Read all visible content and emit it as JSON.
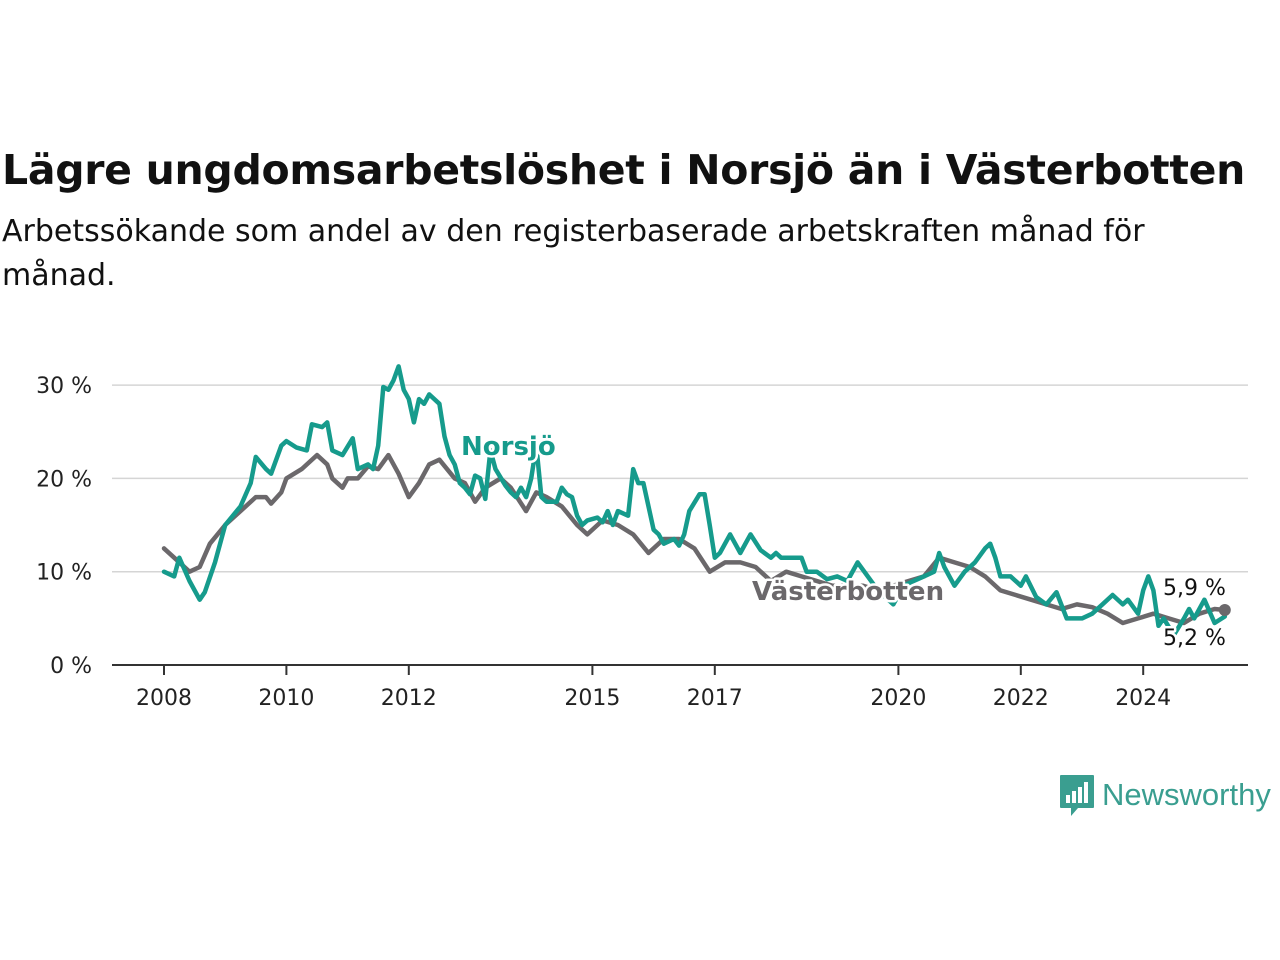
{
  "header": {
    "title": "Lägre ungdomsarbetslöshet i Norsjö än i Västerbotten",
    "subtitle": "Arbetssökande som andel av den registerbaserade arbetskraften månad för månad."
  },
  "branding": {
    "logo_text": "Newsworthy",
    "logo_icon": "bar-chart-speech-bubble-icon"
  },
  "colors": {
    "norsjo": "#169b8c",
    "vasterbotten": "#6b686b",
    "grid": "#d5d5d5",
    "axis": "#333333"
  },
  "chart_data": {
    "type": "line",
    "title": "Lägre ungdomsarbetslöshet i Norsjö än i Västerbotten",
    "subtitle": "Arbetssökande som andel av den registerbaserade arbetskraften månad för månad.",
    "x_axis": {
      "type": "time",
      "min": "2008-01",
      "max": "2025-12",
      "ticks": [
        "2008",
        "2010",
        "2012",
        "2015",
        "2017",
        "2020",
        "2022",
        "2024"
      ]
    },
    "y_axis": {
      "min": 0,
      "max": 30,
      "ticks": [
        0,
        10,
        20,
        30
      ],
      "tick_labels": [
        "0 %",
        "10 %",
        "20 %",
        "30 %"
      ]
    },
    "grid": "horizontal",
    "series": [
      {
        "name": "Norsjö",
        "end_label": "5,2 %",
        "points": [
          [
            "2008-01",
            10.0
          ],
          [
            "2008-03",
            9.5
          ],
          [
            "2008-04",
            11.5
          ],
          [
            "2008-06",
            9.0
          ],
          [
            "2008-08",
            7.0
          ],
          [
            "2008-09",
            7.8
          ],
          [
            "2008-11",
            11.0
          ],
          [
            "2009-01",
            15.0
          ],
          [
            "2009-04",
            17.0
          ],
          [
            "2009-06",
            19.5
          ],
          [
            "2009-07",
            22.3
          ],
          [
            "2009-09",
            21.0
          ],
          [
            "2009-10",
            20.5
          ],
          [
            "2009-12",
            23.5
          ],
          [
            "2010-01",
            24.0
          ],
          [
            "2010-03",
            23.3
          ],
          [
            "2010-05",
            23.0
          ],
          [
            "2010-06",
            25.8
          ],
          [
            "2010-08",
            25.5
          ],
          [
            "2010-09",
            26.0
          ],
          [
            "2010-10",
            23.0
          ],
          [
            "2010-12",
            22.5
          ],
          [
            "2011-02",
            24.3
          ],
          [
            "2011-03",
            21.0
          ],
          [
            "2011-05",
            21.5
          ],
          [
            "2011-06",
            21.0
          ],
          [
            "2011-07",
            23.5
          ],
          [
            "2011-08",
            29.8
          ],
          [
            "2011-09",
            29.5
          ],
          [
            "2011-10",
            30.5
          ],
          [
            "2011-11",
            32.0
          ],
          [
            "2011-12",
            29.5
          ],
          [
            "2012-01",
            28.5
          ],
          [
            "2012-02",
            26.0
          ],
          [
            "2012-03",
            28.5
          ],
          [
            "2012-04",
            28.0
          ],
          [
            "2012-05",
            29.0
          ],
          [
            "2012-07",
            28.0
          ],
          [
            "2012-08",
            24.5
          ],
          [
            "2012-09",
            22.5
          ],
          [
            "2012-10",
            21.5
          ],
          [
            "2012-11",
            19.5
          ],
          [
            "2012-12",
            19.0
          ],
          [
            "2013-01",
            18.3
          ],
          [
            "2013-02",
            20.3
          ],
          [
            "2013-03",
            20.0
          ],
          [
            "2013-04",
            17.8
          ],
          [
            "2013-05",
            23.0
          ],
          [
            "2013-06",
            21.0
          ],
          [
            "2013-08",
            19.2
          ],
          [
            "2013-09",
            18.5
          ],
          [
            "2013-10",
            18.0
          ],
          [
            "2013-11",
            19.0
          ],
          [
            "2013-12",
            18.0
          ],
          [
            "2014-01",
            20.0
          ],
          [
            "2014-02",
            23.5
          ],
          [
            "2014-03",
            18.0
          ],
          [
            "2014-04",
            17.5
          ],
          [
            "2014-06",
            17.5
          ],
          [
            "2014-07",
            19.0
          ],
          [
            "2014-08",
            18.3
          ],
          [
            "2014-09",
            18.0
          ],
          [
            "2014-10",
            16.0
          ],
          [
            "2014-11",
            15.0
          ],
          [
            "2014-12",
            15.5
          ],
          [
            "2015-02",
            15.8
          ],
          [
            "2015-03",
            15.3
          ],
          [
            "2015-04",
            16.5
          ],
          [
            "2015-05",
            15.0
          ],
          [
            "2015-06",
            16.5
          ],
          [
            "2015-08",
            16.0
          ],
          [
            "2015-09",
            21.0
          ],
          [
            "2015-10",
            19.5
          ],
          [
            "2015-11",
            19.5
          ],
          [
            "2015-12",
            17.0
          ],
          [
            "2016-01",
            14.5
          ],
          [
            "2016-02",
            14.0
          ],
          [
            "2016-03",
            13.0
          ],
          [
            "2016-05",
            13.5
          ],
          [
            "2016-06",
            12.8
          ],
          [
            "2016-07",
            14.0
          ],
          [
            "2016-08",
            16.5
          ],
          [
            "2016-10",
            18.3
          ],
          [
            "2016-11",
            18.3
          ],
          [
            "2016-12",
            15.0
          ],
          [
            "2017-01",
            11.5
          ],
          [
            "2017-02",
            12.0
          ],
          [
            "2017-04",
            14.0
          ],
          [
            "2017-05",
            13.0
          ],
          [
            "2017-06",
            12.0
          ],
          [
            "2017-08",
            14.0
          ],
          [
            "2017-10",
            12.3
          ],
          [
            "2017-12",
            11.5
          ],
          [
            "2018-01",
            12.0
          ],
          [
            "2018-02",
            11.5
          ],
          [
            "2018-04",
            11.5
          ],
          [
            "2018-06",
            11.5
          ],
          [
            "2018-07",
            10.0
          ],
          [
            "2018-09",
            10.0
          ],
          [
            "2018-11",
            9.2
          ],
          [
            "2019-01",
            9.5
          ],
          [
            "2019-03",
            9.0
          ],
          [
            "2019-05",
            11.0
          ],
          [
            "2019-07",
            9.5
          ],
          [
            "2019-09",
            8.0
          ],
          [
            "2019-12",
            6.5
          ],
          [
            "2020-02",
            8.5
          ],
          [
            "2020-04",
            9.0
          ],
          [
            "2020-06",
            9.5
          ],
          [
            "2020-08",
            10.0
          ],
          [
            "2020-09",
            12.0
          ],
          [
            "2020-10",
            10.5
          ],
          [
            "2020-11",
            9.5
          ],
          [
            "2020-12",
            8.5
          ],
          [
            "2021-02",
            10.0
          ],
          [
            "2021-04",
            11.0
          ],
          [
            "2021-06",
            12.5
          ],
          [
            "2021-07",
            13.0
          ],
          [
            "2021-08",
            11.5
          ],
          [
            "2021-09",
            9.5
          ],
          [
            "2021-11",
            9.5
          ],
          [
            "2022-01",
            8.5
          ],
          [
            "2022-02",
            9.5
          ],
          [
            "2022-04",
            7.3
          ],
          [
            "2022-06",
            6.5
          ],
          [
            "2022-08",
            7.8
          ],
          [
            "2022-10",
            5.0
          ],
          [
            "2023-01",
            5.0
          ],
          [
            "2023-03",
            5.5
          ],
          [
            "2023-05",
            6.5
          ],
          [
            "2023-07",
            7.5
          ],
          [
            "2023-09",
            6.5
          ],
          [
            "2023-10",
            7.0
          ],
          [
            "2023-12",
            5.5
          ],
          [
            "2024-01",
            8.0
          ],
          [
            "2024-02",
            9.5
          ],
          [
            "2024-03",
            8.0
          ],
          [
            "2024-04",
            4.2
          ],
          [
            "2024-05",
            5.0
          ],
          [
            "2024-07",
            3.2
          ],
          [
            "2024-09",
            5.0
          ],
          [
            "2024-10",
            6.0
          ],
          [
            "2024-11",
            5.0
          ],
          [
            "2025-01",
            7.0
          ],
          [
            "2025-03",
            4.5
          ],
          [
            "2025-05",
            5.2
          ]
        ]
      },
      {
        "name": "Västerbotten",
        "end_label": "5,9 %",
        "points": [
          [
            "2008-01",
            12.5
          ],
          [
            "2008-03",
            11.5
          ],
          [
            "2008-06",
            10.0
          ],
          [
            "2008-08",
            10.5
          ],
          [
            "2008-10",
            13.0
          ],
          [
            "2009-01",
            15.0
          ],
          [
            "2009-04",
            16.5
          ],
          [
            "2009-07",
            18.0
          ],
          [
            "2009-09",
            18.0
          ],
          [
            "2009-10",
            17.3
          ],
          [
            "2009-12",
            18.5
          ],
          [
            "2010-01",
            20.0
          ],
          [
            "2010-04",
            21.0
          ],
          [
            "2010-07",
            22.5
          ],
          [
            "2010-09",
            21.5
          ],
          [
            "2010-10",
            20.0
          ],
          [
            "2010-12",
            19.0
          ],
          [
            "2011-01",
            20.0
          ],
          [
            "2011-03",
            20.0
          ],
          [
            "2011-05",
            21.3
          ],
          [
            "2011-07",
            21.0
          ],
          [
            "2011-09",
            22.5
          ],
          [
            "2011-11",
            20.5
          ],
          [
            "2012-01",
            18.0
          ],
          [
            "2012-03",
            19.5
          ],
          [
            "2012-05",
            21.5
          ],
          [
            "2012-07",
            22.0
          ],
          [
            "2012-10",
            20.0
          ],
          [
            "2012-12",
            19.5
          ],
          [
            "2013-02",
            17.5
          ],
          [
            "2013-04",
            19.0
          ],
          [
            "2013-07",
            20.0
          ],
          [
            "2013-09",
            19.0
          ],
          [
            "2013-12",
            16.5
          ],
          [
            "2014-02",
            18.5
          ],
          [
            "2014-04",
            18.0
          ],
          [
            "2014-07",
            17.0
          ],
          [
            "2014-10",
            15.0
          ],
          [
            "2014-12",
            14.0
          ],
          [
            "2015-03",
            15.5
          ],
          [
            "2015-06",
            15.0
          ],
          [
            "2015-09",
            14.0
          ],
          [
            "2015-12",
            12.0
          ],
          [
            "2016-03",
            13.5
          ],
          [
            "2016-06",
            13.5
          ],
          [
            "2016-09",
            12.5
          ],
          [
            "2016-12",
            10.0
          ],
          [
            "2017-03",
            11.0
          ],
          [
            "2017-06",
            11.0
          ],
          [
            "2017-09",
            10.5
          ],
          [
            "2017-12",
            9.0
          ],
          [
            "2018-03",
            10.0
          ],
          [
            "2018-06",
            9.5
          ],
          [
            "2018-09",
            9.0
          ],
          [
            "2018-12",
            8.5
          ],
          [
            "2019-03",
            8.5
          ],
          [
            "2019-06",
            8.5
          ],
          [
            "2019-09",
            8.0
          ],
          [
            "2019-12",
            8.5
          ],
          [
            "2020-03",
            9.0
          ],
          [
            "2020-06",
            9.5
          ],
          [
            "2020-09",
            11.5
          ],
          [
            "2020-12",
            11.0
          ],
          [
            "2021-03",
            10.5
          ],
          [
            "2021-06",
            9.5
          ],
          [
            "2021-09",
            8.0
          ],
          [
            "2021-12",
            7.5
          ],
          [
            "2022-03",
            7.0
          ],
          [
            "2022-06",
            6.5
          ],
          [
            "2022-09",
            6.0
          ],
          [
            "2022-12",
            6.5
          ],
          [
            "2023-03",
            6.2
          ],
          [
            "2023-06",
            5.5
          ],
          [
            "2023-09",
            4.5
          ],
          [
            "2023-12",
            5.0
          ],
          [
            "2024-03",
            5.5
          ],
          [
            "2024-06",
            5.0
          ],
          [
            "2024-09",
            4.5
          ],
          [
            "2024-12",
            5.5
          ],
          [
            "2025-03",
            6.0
          ],
          [
            "2025-05",
            5.9
          ]
        ]
      }
    ],
    "annotations": [
      {
        "text": "Norsjö",
        "series": "Norsjö"
      },
      {
        "text": "Västerbotten",
        "series": "Västerbotten"
      }
    ]
  }
}
